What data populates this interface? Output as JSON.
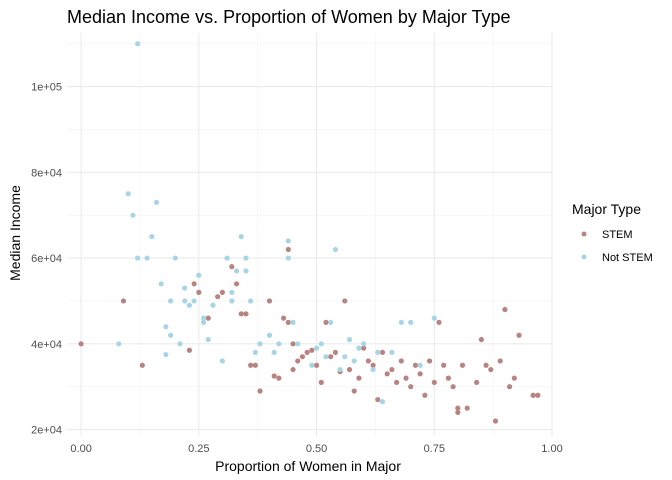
{
  "chart_data": {
    "type": "scatter",
    "title": "Median Income vs. Proportion of Women by Major Type",
    "xlabel": "Proportion of Women in Major",
    "ylabel": "Median Income",
    "xlim": [
      -0.03,
      1.0
    ],
    "ylim": [
      18500,
      112500
    ],
    "x_ticks": [
      0.0,
      0.25,
      0.5,
      0.75,
      1.0
    ],
    "x_tick_labels": [
      "0.00",
      "0.25",
      "0.50",
      "0.75",
      "1.00"
    ],
    "y_ticks": [
      20000,
      40000,
      60000,
      80000,
      100000
    ],
    "y_tick_labels": [
      "2e+04",
      "4e+04",
      "6e+04",
      "8e+04",
      "1e+05"
    ],
    "grid": true,
    "legend": {
      "title": "Major Type",
      "position": "right"
    },
    "series": [
      {
        "name": "STEM",
        "color": "#b8847f",
        "points": [
          [
            0.0,
            40000
          ],
          [
            0.09,
            50000
          ],
          [
            0.13,
            35000
          ],
          [
            0.23,
            38500
          ],
          [
            0.24,
            54000
          ],
          [
            0.25,
            52000
          ],
          [
            0.27,
            46000
          ],
          [
            0.29,
            51000
          ],
          [
            0.3,
            52000
          ],
          [
            0.32,
            58000
          ],
          [
            0.33,
            54000
          ],
          [
            0.34,
            47000
          ],
          [
            0.35,
            47000
          ],
          [
            0.36,
            35000
          ],
          [
            0.37,
            35000
          ],
          [
            0.38,
            29000
          ],
          [
            0.4,
            50000
          ],
          [
            0.41,
            32500
          ],
          [
            0.42,
            32000
          ],
          [
            0.43,
            46000
          ],
          [
            0.44,
            45000
          ],
          [
            0.44,
            62000
          ],
          [
            0.45,
            40000
          ],
          [
            0.45,
            34000
          ],
          [
            0.46,
            36000
          ],
          [
            0.47,
            37000
          ],
          [
            0.48,
            38000
          ],
          [
            0.49,
            38500
          ],
          [
            0.5,
            35000
          ],
          [
            0.51,
            31000
          ],
          [
            0.52,
            45000
          ],
          [
            0.53,
            37000
          ],
          [
            0.54,
            38000
          ],
          [
            0.55,
            33500
          ],
          [
            0.56,
            50000
          ],
          [
            0.57,
            34000
          ],
          [
            0.58,
            29000
          ],
          [
            0.59,
            32000
          ],
          [
            0.6,
            39000
          ],
          [
            0.61,
            36000
          ],
          [
            0.62,
            35000
          ],
          [
            0.63,
            27000
          ],
          [
            0.64,
            38000
          ],
          [
            0.65,
            33000
          ],
          [
            0.66,
            34000
          ],
          [
            0.67,
            31000
          ],
          [
            0.68,
            36000
          ],
          [
            0.69,
            32000
          ],
          [
            0.7,
            30000
          ],
          [
            0.71,
            35000
          ],
          [
            0.72,
            33000
          ],
          [
            0.73,
            28000
          ],
          [
            0.74,
            36000
          ],
          [
            0.75,
            31000
          ],
          [
            0.76,
            45000
          ],
          [
            0.77,
            35000
          ],
          [
            0.78,
            32000
          ],
          [
            0.79,
            30000
          ],
          [
            0.8,
            24000
          ],
          [
            0.8,
            25000
          ],
          [
            0.81,
            35000
          ],
          [
            0.82,
            25000
          ],
          [
            0.84,
            31000
          ],
          [
            0.85,
            41000
          ],
          [
            0.86,
            35000
          ],
          [
            0.87,
            34000
          ],
          [
            0.88,
            22000
          ],
          [
            0.89,
            36000
          ],
          [
            0.9,
            48000
          ],
          [
            0.91,
            30000
          ],
          [
            0.92,
            32000
          ],
          [
            0.93,
            42000
          ],
          [
            0.96,
            28000
          ],
          [
            0.97,
            28000
          ]
        ]
      },
      {
        "name": "Not STEM",
        "color": "#a8d5e5",
        "points": [
          [
            0.08,
            40000
          ],
          [
            0.1,
            75000
          ],
          [
            0.11,
            70000
          ],
          [
            0.12,
            110000
          ],
          [
            0.12,
            60000
          ],
          [
            0.14,
            60000
          ],
          [
            0.15,
            65000
          ],
          [
            0.16,
            73000
          ],
          [
            0.17,
            54000
          ],
          [
            0.18,
            44000
          ],
          [
            0.18,
            37500
          ],
          [
            0.19,
            42000
          ],
          [
            0.19,
            50000
          ],
          [
            0.2,
            60000
          ],
          [
            0.21,
            40000
          ],
          [
            0.22,
            50000
          ],
          [
            0.22,
            53000
          ],
          [
            0.23,
            49000
          ],
          [
            0.24,
            50000
          ],
          [
            0.25,
            56000
          ],
          [
            0.26,
            45000
          ],
          [
            0.26,
            46000
          ],
          [
            0.27,
            41000
          ],
          [
            0.28,
            49000
          ],
          [
            0.3,
            36000
          ],
          [
            0.31,
            60000
          ],
          [
            0.32,
            52000
          ],
          [
            0.32,
            50000
          ],
          [
            0.33,
            57000
          ],
          [
            0.34,
            65000
          ],
          [
            0.35,
            60000
          ],
          [
            0.35,
            57000
          ],
          [
            0.36,
            50000
          ],
          [
            0.37,
            38000
          ],
          [
            0.38,
            40000
          ],
          [
            0.4,
            42000
          ],
          [
            0.41,
            38000
          ],
          [
            0.42,
            40000
          ],
          [
            0.44,
            64000
          ],
          [
            0.44,
            60000
          ],
          [
            0.45,
            45000
          ],
          [
            0.46,
            40000
          ],
          [
            0.49,
            35000
          ],
          [
            0.5,
            39000
          ],
          [
            0.51,
            40000
          ],
          [
            0.52,
            37000
          ],
          [
            0.53,
            45000
          ],
          [
            0.54,
            62000
          ],
          [
            0.55,
            34000
          ],
          [
            0.56,
            37000
          ],
          [
            0.57,
            41000
          ],
          [
            0.58,
            36000
          ],
          [
            0.59,
            39000
          ],
          [
            0.6,
            40000
          ],
          [
            0.62,
            34000
          ],
          [
            0.63,
            38000
          ],
          [
            0.64,
            26500
          ],
          [
            0.66,
            38000
          ],
          [
            0.68,
            45000
          ],
          [
            0.7,
            45000
          ],
          [
            0.72,
            35000
          ],
          [
            0.75,
            46000
          ]
        ]
      }
    ]
  }
}
